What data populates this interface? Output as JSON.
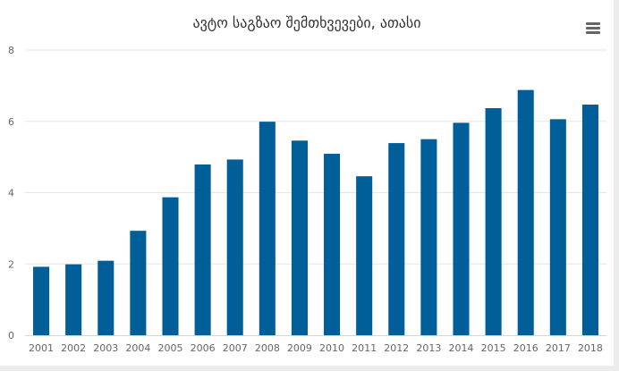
{
  "chart_data": {
    "type": "bar",
    "title": "ავტო საგზაო შემთხვევები, ათასი",
    "xlabel": "",
    "ylabel": "",
    "categories": [
      "2001",
      "2002",
      "2003",
      "2004",
      "2005",
      "2006",
      "2007",
      "2008",
      "2009",
      "2010",
      "2011",
      "2012",
      "2013",
      "2014",
      "2015",
      "2016",
      "2017",
      "2018"
    ],
    "values": [
      1.92,
      1.99,
      2.09,
      2.93,
      3.87,
      4.79,
      4.93,
      5.99,
      5.46,
      5.09,
      4.46,
      5.39,
      5.5,
      5.96,
      6.37,
      6.88,
      6.06,
      6.47
    ],
    "ylim": [
      0,
      8
    ],
    "yticks": [
      0,
      2,
      4,
      6,
      8
    ],
    "grid": true,
    "legend": "none",
    "bar_color": "#005e99",
    "grid_color": "#e6e6e6"
  },
  "menu": {
    "icon": "hamburger-menu-icon"
  }
}
